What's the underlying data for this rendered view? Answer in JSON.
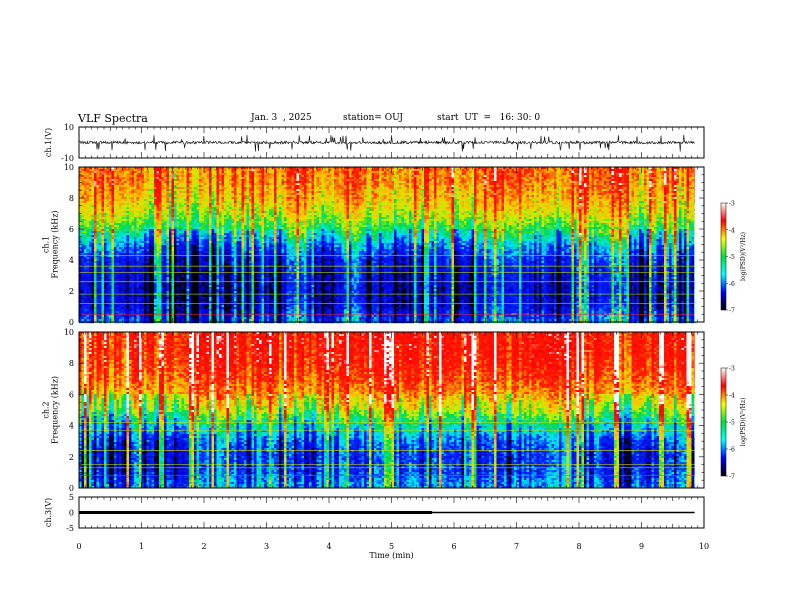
{
  "header": {
    "title": "VLF Spectra",
    "date": "Jan. 3  , 2025",
    "station": "station= OUJ",
    "start": "start  UT  =   16: 30: 0"
  },
  "colorbar": {
    "label": "log(PSD)(V²/Hz)",
    "ticks": [
      "-3",
      "-4",
      "-5",
      "-6",
      "-7"
    ],
    "stops": [
      "#ffffff",
      "#ff0000",
      "#ffff00",
      "#00e040",
      "#00ffff",
      "#0000ff",
      "#000000"
    ]
  },
  "chart_data": [
    {
      "type": "line",
      "name": "ch1-waveform",
      "ylabel": "ch.1(V)",
      "ylim": [
        -10,
        10
      ],
      "y_ticks": [
        "10",
        "-10"
      ],
      "xlim": [
        0,
        10
      ],
      "baseline_v": 0,
      "noise_amplitude_v": 1.5,
      "spikes_v": {
        "min": -6,
        "max": 5
      }
    },
    {
      "type": "heatmap",
      "name": "ch1-spectrogram",
      "ylabel": "ch.1\nFrequency  (kHz)",
      "ylim": [
        0,
        10
      ],
      "y_ticks": [
        "0",
        "2",
        "4",
        "6",
        "8",
        "10"
      ],
      "xlim": [
        0,
        10
      ],
      "zlim": [
        -7,
        -3
      ],
      "profile_khz": [
        0,
        1,
        2,
        3,
        4,
        5,
        6,
        7,
        8,
        9,
        10
      ],
      "profile_log_psd": [
        -5.9,
        -6.4,
        -6.5,
        -6.4,
        -6.2,
        -5.7,
        -5.0,
        -4.5,
        -4.2,
        -4.0,
        -3.9
      ],
      "hum_lines_khz": [
        0.5,
        1.2,
        1.8,
        2.6,
        3.2,
        3.6,
        4.3
      ]
    },
    {
      "type": "heatmap",
      "name": "ch2-spectrogram",
      "ylabel": "ch.2\nFrequency  (kHz)",
      "ylim": [
        0,
        10
      ],
      "y_ticks": [
        "0",
        "2",
        "4",
        "6",
        "8",
        "10"
      ],
      "xlim": [
        0,
        10
      ],
      "zlim": [
        -7,
        -3
      ],
      "profile_khz": [
        0,
        1,
        2,
        3,
        4,
        5,
        6,
        7,
        8,
        9,
        10
      ],
      "profile_log_psd": [
        -5.6,
        -5.9,
        -6.0,
        -5.8,
        -5.2,
        -4.5,
        -4.0,
        -3.7,
        -3.5,
        -3.4,
        -3.4
      ],
      "hum_lines_khz": [
        0.8,
        1.3,
        1.5,
        2.4,
        3.7,
        4.2
      ]
    },
    {
      "type": "line",
      "name": "ch3-level",
      "ylabel": "ch.3(V)",
      "ylim": [
        -5,
        5
      ],
      "y_ticks": [
        "5",
        "0",
        "-5"
      ],
      "xlim": [
        0,
        10
      ],
      "xlabel": "Time  (min)",
      "x_ticks": [
        "0",
        "1",
        "2",
        "3",
        "4",
        "5",
        "6",
        "7",
        "8",
        "9",
        "10"
      ],
      "segments": [
        {
          "x0": 0,
          "x1": 5.65,
          "y": 0
        },
        {
          "x0": 5.65,
          "x1": 9.85,
          "y": 0
        }
      ]
    }
  ]
}
